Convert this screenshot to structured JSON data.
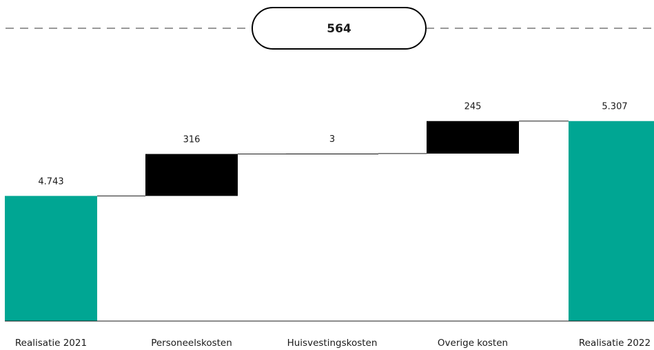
{
  "chart_data": {
    "type": "bar",
    "subtype": "waterfall",
    "categories": [
      "Realisatie 2021",
      "Personeelskosten",
      "Huisvestingskosten",
      "Overige kosten",
      "Realisatie 2022"
    ],
    "values": [
      4743,
      316,
      3,
      245,
      5307
    ],
    "value_labels": [
      "4.743",
      "316",
      "3",
      "245",
      "5.307"
    ],
    "bar_kinds": [
      "total",
      "delta",
      "delta",
      "delta",
      "total"
    ],
    "difference": {
      "value": 564,
      "label": "564"
    },
    "ylim": [
      3800,
      5560
    ],
    "grid": false,
    "legend": "none",
    "title": "",
    "xlabel": "",
    "ylabel": ""
  },
  "colors": {
    "total": "#00a693",
    "delta": "#000000",
    "connector": "#1a1a1a",
    "baseline": "#1a1a1a",
    "dashed_line": "#333333",
    "text": "#1a1a1a"
  }
}
